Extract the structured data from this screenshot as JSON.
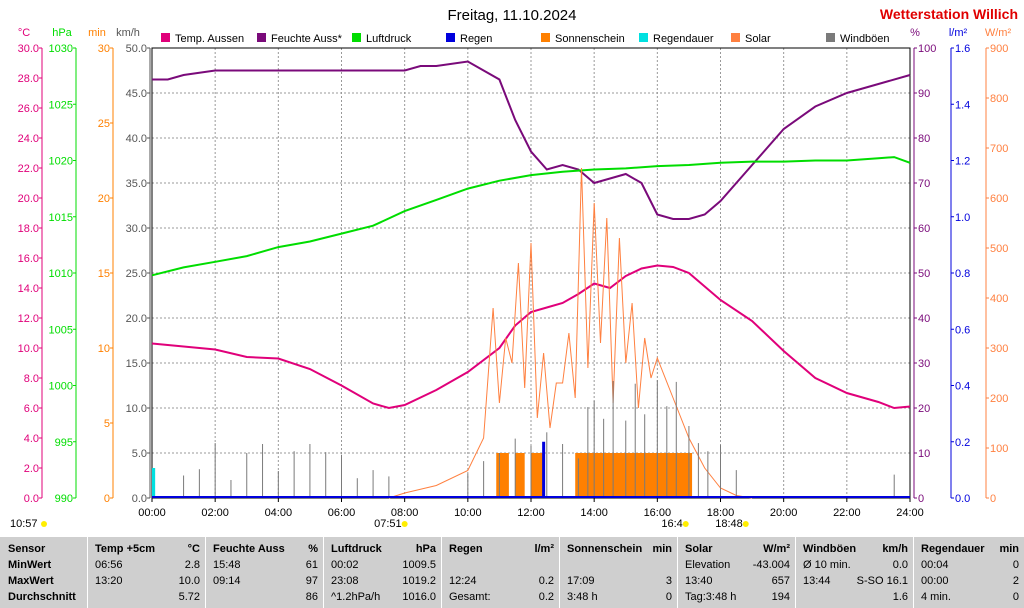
{
  "header": {
    "title": "Freitag, 11.10.2024",
    "station": "Wetterstation Willich"
  },
  "colors": {
    "temp": "#e0007a",
    "humidity": "#7a0a7a",
    "pressure": "#00dd00",
    "rain": "#0000dd",
    "sunshine": "#ff8000",
    "rain_duration": "#00e0e0",
    "solar": "#ff8040",
    "wind": "#7a7a7a",
    "station": "#e00000",
    "table_bg": "#cfcfcf"
  },
  "chart_data": {
    "type": "line",
    "title": "Freitag, 11.10.2024",
    "xlabel": "",
    "x_ticks": [
      "00:00",
      "02:00",
      "04:00",
      "06:00",
      "08:00",
      "10:00",
      "12:00",
      "14:00",
      "16:00",
      "18:00",
      "20:00",
      "22:00",
      "24:00"
    ],
    "legend": [
      {
        "label": "Temp. Aussen",
        "color": "#e0007a"
      },
      {
        "label": "Feuchte Auss*",
        "color": "#7a0a7a"
      },
      {
        "label": "Luftdruck",
        "color": "#00dd00"
      },
      {
        "label": "Regen",
        "color": "#0000dd"
      },
      {
        "label": "Sonnenschein",
        "color": "#ff8000"
      },
      {
        "label": "Regendauer",
        "color": "#00e0e0"
      },
      {
        "label": "Solar",
        "color": "#ff8040"
      },
      {
        "label": "Windböen",
        "color": "#7a7a7a"
      }
    ],
    "axes": {
      "temp": {
        "unit": "°C",
        "min": 0,
        "max": 30,
        "ticks": [
          "0.0",
          "2.0",
          "4.0",
          "6.0",
          "8.0",
          "10.0",
          "12.0",
          "14.0",
          "16.0",
          "18.0",
          "20.0",
          "22.0",
          "24.0",
          "26.0",
          "28.0",
          "30.0"
        ],
        "color": "#e0007a"
      },
      "pressure": {
        "unit": "hPa",
        "min": 990,
        "max": 1030,
        "ticks": [
          "990",
          "995",
          "1000",
          "1005",
          "1010",
          "1015",
          "1020",
          "1025",
          "1030"
        ],
        "color": "#00dd00"
      },
      "minutes": {
        "unit": "min",
        "min": 0,
        "max": 30,
        "ticks": [
          "0",
          "5",
          "10",
          "15",
          "20",
          "25",
          "30"
        ],
        "color": "#ff8000"
      },
      "wind": {
        "unit": "km/h",
        "min": 0,
        "max": 50,
        "ticks": [
          "0.0",
          "5.0",
          "10.0",
          "15.0",
          "20.0",
          "25.0",
          "30.0",
          "35.0",
          "40.0",
          "45.0",
          "50.0"
        ],
        "color": "#555555"
      },
      "humidity": {
        "unit": "%",
        "min": 0,
        "max": 100,
        "ticks": [
          "0",
          "10",
          "20",
          "30",
          "40",
          "50",
          "60",
          "70",
          "80",
          "90",
          "100"
        ],
        "color": "#7a0a7a"
      },
      "rain": {
        "unit": "l/m²",
        "min": 0,
        "max": 1.6,
        "ticks": [
          "0.0",
          "0.2",
          "0.4",
          "0.6",
          "0.8",
          "1.0",
          "1.2",
          "1.4",
          "1.6"
        ],
        "color": "#0000dd"
      },
      "solar": {
        "unit": "W/m²",
        "min": 0,
        "max": 900,
        "ticks": [
          "0",
          "100",
          "200",
          "300",
          "400",
          "500",
          "600",
          "700",
          "800",
          "900"
        ],
        "color": "#ff8040"
      }
    },
    "series": [
      {
        "name": "Temp. Aussen",
        "axis": "temp",
        "x": [
          0,
          1,
          2,
          3,
          4,
          5,
          6,
          7,
          7.5,
          8,
          9,
          10,
          11,
          11.5,
          12,
          12.5,
          13,
          13.5,
          14,
          14.5,
          15,
          15.5,
          16,
          16.5,
          17,
          18,
          19,
          20,
          21,
          22,
          23,
          23.5,
          24
        ],
        "y": [
          10.3,
          10.1,
          9.9,
          9.4,
          9.3,
          8.6,
          7.5,
          6.3,
          6.0,
          6.2,
          7.2,
          8.4,
          10.0,
          11.5,
          12.4,
          12.7,
          13.0,
          13.6,
          14.3,
          14.0,
          14.8,
          15.3,
          15.5,
          15.4,
          15.0,
          13.2,
          11.8,
          9.8,
          8.0,
          7.0,
          6.4,
          6.0,
          6.1
        ]
      },
      {
        "name": "Feuchte Auss*",
        "axis": "humidity",
        "x": [
          0,
          0.5,
          1,
          2,
          3,
          4,
          5,
          6,
          7,
          8,
          8.5,
          9,
          10,
          11,
          11.5,
          12,
          12.5,
          13,
          13.5,
          14,
          14.5,
          15,
          15.5,
          16,
          16.5,
          17,
          17.5,
          18,
          19,
          20,
          21,
          22,
          23,
          24
        ],
        "y": [
          93,
          93,
          94,
          95,
          95,
          95,
          95,
          95,
          95,
          95,
          96,
          96,
          97,
          93,
          84,
          77,
          73,
          74,
          73,
          70,
          71,
          72,
          70,
          63,
          62,
          62,
          63,
          66,
          74,
          82,
          87,
          90,
          92,
          94
        ]
      },
      {
        "name": "Luftdruck",
        "axis": "pressure",
        "x": [
          0,
          1,
          2,
          3,
          4,
          5,
          6,
          7,
          8,
          9,
          10,
          11,
          12,
          13,
          14,
          15,
          16,
          17,
          18,
          19,
          20,
          21,
          22,
          23,
          23.5,
          24
        ],
        "y": [
          1009.8,
          1010.5,
          1011.0,
          1011.5,
          1012.3,
          1012.8,
          1013.5,
          1014.2,
          1015.5,
          1016.5,
          1017.5,
          1018.2,
          1018.7,
          1019.0,
          1019.2,
          1019.3,
          1019.5,
          1019.6,
          1019.8,
          1019.9,
          1019.9,
          1020.0,
          1020.0,
          1020.2,
          1020.3,
          1019.8
        ]
      },
      {
        "name": "Solar",
        "axis": "solar",
        "x": [
          7.5,
          8,
          9,
          10,
          10.5,
          10.8,
          11,
          11.2,
          11.4,
          11.6,
          11.8,
          12,
          12.2,
          12.4,
          12.6,
          12.8,
          13,
          13.2,
          13.4,
          13.6,
          13.8,
          14,
          14.2,
          14.4,
          14.6,
          14.8,
          15,
          15.2,
          15.4,
          15.6,
          15.8,
          16,
          16.5,
          17,
          17.5,
          18,
          18.5,
          19
        ],
        "y": [
          0,
          10,
          25,
          55,
          120,
          380,
          190,
          320,
          270,
          470,
          220,
          510,
          160,
          290,
          140,
          230,
          230,
          330,
          200,
          660,
          260,
          590,
          310,
          560,
          190,
          520,
          270,
          390,
          180,
          320,
          240,
          280,
          200,
          120,
          60,
          20,
          5,
          0
        ]
      },
      {
        "name": "Windböen",
        "axis": "wind",
        "x": [
          1,
          1.5,
          2,
          2.5,
          3,
          3.5,
          4,
          4.5,
          5,
          5.5,
          6,
          6.5,
          7,
          7.5,
          10,
          10.5,
          11,
          11.5,
          12,
          12.5,
          13,
          13.5,
          13.8,
          14,
          14.3,
          14.6,
          15,
          15.3,
          15.6,
          16,
          16.3,
          16.6,
          17,
          17.3,
          17.6,
          18,
          18.5,
          23.5
        ],
        "y": [
          2.5,
          3.2,
          6.1,
          2.0,
          5.0,
          6.0,
          3.0,
          5.2,
          6.0,
          5.1,
          4.8,
          2.2,
          3.1,
          2.4,
          2.7,
          4.1,
          5.0,
          6.6,
          5.8,
          7.3,
          6.0,
          4.4,
          10.1,
          10.8,
          8.8,
          13.0,
          8.6,
          12.7,
          9.3,
          13.1,
          10.2,
          12.9,
          8.0,
          6.1,
          5.2,
          5.9,
          3.1,
          2.6
        ]
      }
    ],
    "sunshine_minutes": {
      "axis": "minutes",
      "intervals": [
        [
          10.9,
          11.3,
          3
        ],
        [
          11.5,
          11.8,
          3
        ],
        [
          12.0,
          12.4,
          3
        ],
        [
          13.4,
          17.1,
          3
        ]
      ]
    },
    "rain_events": [
      {
        "time": 12.4,
        "value": 0.2
      }
    ],
    "rain_duration": [
      {
        "start": 0,
        "end": 0.1,
        "value": 2
      }
    ],
    "x_markers": [
      {
        "time": 8.0,
        "label": "07:51"
      },
      {
        "time": 16.9,
        "label": "16:4"
      },
      {
        "time": 18.8,
        "label": "18:48"
      }
    ],
    "left_corner_label": "10:57"
  },
  "table": {
    "sensor": {
      "header": "Sensor",
      "rows": [
        "MinWert",
        "MaxWert",
        "Durchschnitt"
      ]
    },
    "temp": {
      "header": "Temp +5cm",
      "unit": "°C",
      "time": [
        "06:56",
        "13:20",
        ""
      ],
      "val": [
        "2.8",
        "10.0",
        "5.72"
      ]
    },
    "humidity": {
      "header": "Feuchte Auss",
      "unit": "%",
      "time": [
        "15:48",
        "09:14",
        ""
      ],
      "val": [
        "61",
        "97",
        "86"
      ]
    },
    "pressure": {
      "header": "Luftdruck",
      "unit": "hPa",
      "time": [
        "00:02",
        "23:08",
        "^1.2hPa/h"
      ],
      "val": [
        "1009.5",
        "1019.2",
        "1016.0"
      ]
    },
    "rain": {
      "header": "Regen",
      "unit": "l/m²",
      "time": [
        "",
        "12:24",
        "Gesamt:"
      ],
      "val": [
        "",
        "0.2",
        "0.2"
      ]
    },
    "sunshine": {
      "header": "Sonnenschein",
      "unit": "min",
      "time": [
        "",
        "17:09",
        "3:48 h"
      ],
      "val": [
        "",
        "3",
        "0"
      ]
    },
    "solar": {
      "header": "Solar",
      "unit": "W/m²",
      "time": [
        "Elevation",
        "13:40",
        "Tag:3:48 h"
      ],
      "val": [
        "-43.004",
        "657",
        "194"
      ]
    },
    "wind": {
      "header": "Windböen",
      "unit": "km/h",
      "time": [
        "Ø 10 min.",
        "13:44",
        ""
      ],
      "val": [
        "0.0",
        "S-SO 16.1",
        "1.6"
      ]
    },
    "rain_duration": {
      "header": "Regendauer",
      "unit": "min",
      "time": [
        "00:04",
        "00:00",
        "4 min."
      ],
      "val": [
        "0",
        "2",
        "0"
      ]
    }
  }
}
